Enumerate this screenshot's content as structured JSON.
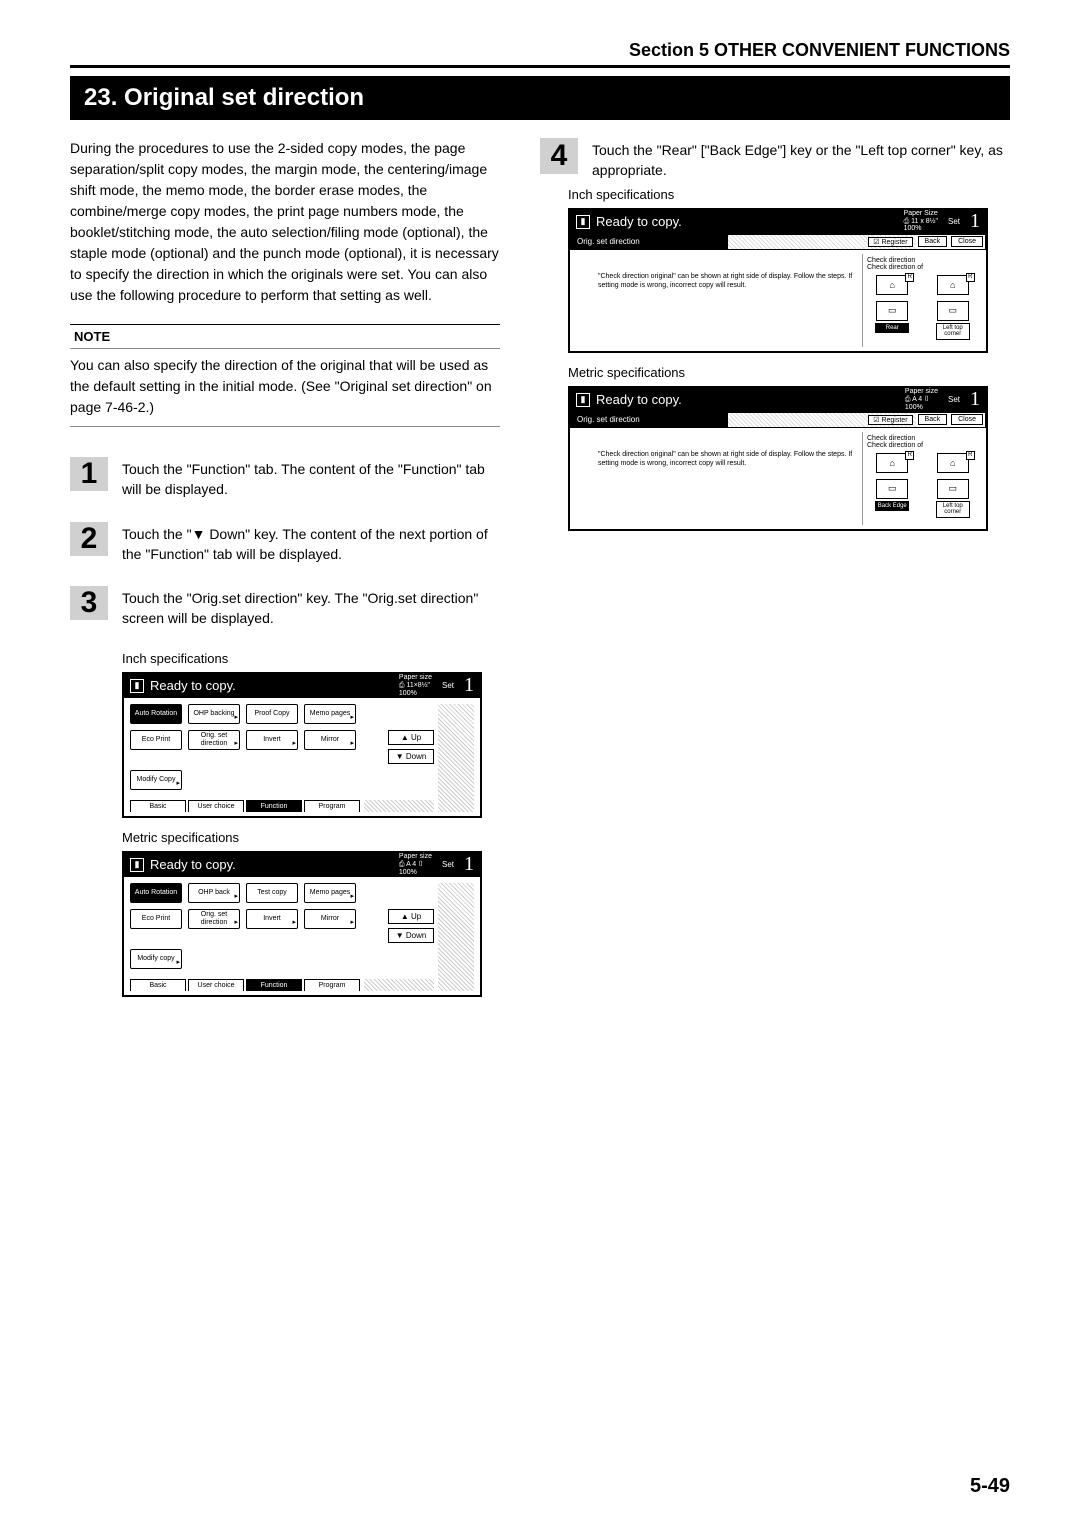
{
  "section_header": "Section 5  OTHER CONVENIENT FUNCTIONS",
  "title": "23. Original set direction",
  "intro": "During the procedures to use the 2-sided copy modes, the page separation/split copy modes, the margin mode, the centering/image shift mode, the memo mode, the border erase modes, the combine/merge copy modes, the print page numbers mode, the booklet/stitching mode, the auto selection/filing mode (optional), the staple mode (optional) and the punch mode (optional), it is necessary to specify the direction in which the originals were set. You can also use the following procedure to perform that setting as well.",
  "note_label": "NOTE",
  "note_body": "You can also specify the direction of the original that will be used as the default setting in the initial mode. (See \"Original set direction\" on page 7-46-2.)",
  "steps": {
    "1": "Touch the \"Function\" tab. The content of the \"Function\" tab will be displayed.",
    "2": "Touch the \"▼ Down\" key. The content of the next portion of the \"Function\" tab will be displayed.",
    "3": "Touch the \"Orig.set direction\" key. The \"Orig.set direction\" screen will be displayed.",
    "4": "Touch the \"Rear\" [\"Back Edge\"] key or the \"Left top corner\" key, as appropriate."
  },
  "captions": {
    "inch": "Inch specifications",
    "metric": "Metric specifications"
  },
  "panel_left": {
    "ready": "Ready to copy.",
    "paper_label": "Paper size",
    "paper_inch": "11×8½\"",
    "paper_metric": "A 4",
    "zoom": "100%",
    "set": "Set",
    "count": "1",
    "buttons_inch": {
      "auto_rotation": "Auto\nRotation",
      "ohp_backing": "OHP\nbacking",
      "proof_copy": "Proof Copy",
      "memo_pages": "Memo\npages",
      "eco_print": "Eco Print",
      "orig_set": "Orig. set\ndirection",
      "invert": "Invert",
      "mirror": "Mirror",
      "modify_copy": "Modify\nCopy"
    },
    "buttons_metric": {
      "auto_rotation": "Auto\nRotation",
      "ohp_back": "OHP back",
      "test_copy": "Test copy",
      "memo_pages": "Memo\npages",
      "eco_print": "Eco Print",
      "orig_set": "Orig. set\ndirection",
      "invert": "Invert",
      "mirror": "Mirror",
      "modify_copy": "Modify\ncopy"
    },
    "up": "Up",
    "down": "Down",
    "tabs": {
      "basic": "Basic",
      "user": "User choice",
      "function": "Function",
      "program": "Program"
    }
  },
  "panel_right": {
    "ready": "Ready to copy.",
    "paper_label_inch": "Paper Size",
    "paper_label_metric": "Paper size",
    "paper_inch": "11 x 8½\"",
    "paper_metric": "A 4",
    "zoom": "100%",
    "set": "Set",
    "count": "1",
    "bar_title": "Orig. set direction",
    "register": "Register",
    "back": "Back",
    "close": "Close",
    "check1": "Check direction",
    "check2": "Check direction of",
    "msg": "\"Check direction original\" can be shown at right side of display.\nFollow the steps. If setting mode is wrong, incorrect copy will result.",
    "rear": "Rear",
    "back_edge": "Back Edge",
    "left_top": "Left top\ncorner"
  },
  "page_number": "5-49",
  "colors": {
    "badge_bg": "#d0d0d0",
    "border": "#000000",
    "dots": "#cccccc"
  }
}
